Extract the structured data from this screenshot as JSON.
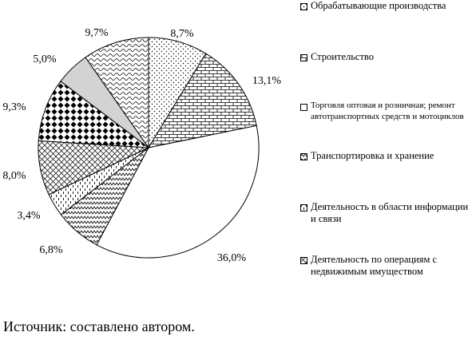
{
  "chart_data": {
    "type": "pie",
    "slices": [
      {
        "label": "Обрабатывающие производства",
        "value": 8.7,
        "display": "8,7%",
        "pattern": "dots"
      },
      {
        "label": "Строительство",
        "value": 13.1,
        "display": "13,1%",
        "pattern": "bricks"
      },
      {
        "label": "Торговля оптовая и розничная; ремонт автотранспортных средств и мотоциклов",
        "value": 36.0,
        "display": "36,0%",
        "pattern": "white"
      },
      {
        "label": "Транспортировка и хранение",
        "value": 6.8,
        "display": "6,8%",
        "pattern": "zigzag"
      },
      {
        "label": "Деятельность в области информации и связи",
        "value": 3.4,
        "display": "3,4%",
        "pattern": "vdash"
      },
      {
        "label": "Деятельность по операциям с недвижимым имуществом",
        "value": 8.0,
        "display": "8,0%",
        "pattern": "crosshatch"
      },
      {
        "label": "",
        "value": 9.3,
        "display": "9,3%",
        "pattern": "checker"
      },
      {
        "label": "",
        "value": 5.0,
        "display": "5,0%",
        "pattern": "gray"
      },
      {
        "label": "",
        "value": 9.7,
        "display": "9,7%",
        "pattern": "wave"
      }
    ],
    "legend": [
      {
        "label": "Обрабатывающие производства",
        "pattern": "dots"
      },
      {
        "label": "Строительство",
        "pattern": "bricks"
      },
      {
        "label": "Торговля оптовая и розничная; ремонт автотранспортных средств и мотоциклов",
        "pattern": "white"
      },
      {
        "label": "Транспортировка и хранение",
        "pattern": "zigzag"
      },
      {
        "label": "Деятельность в области информации и связи",
        "pattern": "vdash"
      },
      {
        "label": "Деятельность по операциям с недвижимым имуществом",
        "pattern": "crosshatch"
      }
    ],
    "legend_position": "right"
  },
  "source_note": "Источник: составлено автором.",
  "colors": {
    "stroke": "#000000",
    "gray": "#d3d3d3",
    "background": "#ffffff"
  }
}
